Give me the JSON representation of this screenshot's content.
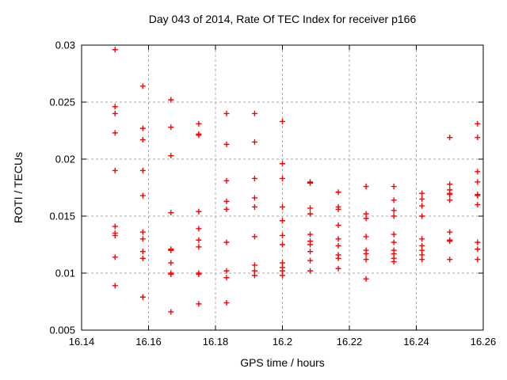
{
  "chart_data": {
    "type": "scatter",
    "title": "Day 043 of 2014, Rate Of TEC Index for receiver p166",
    "xlabel": "GPS time / hours",
    "ylabel": "ROTI / TECUs",
    "xlim": [
      16.14,
      16.26
    ],
    "ylim": [
      0.005,
      0.03
    ],
    "xticks": [
      {
        "value": 16.14,
        "label": "16.14"
      },
      {
        "value": 16.16,
        "label": "16.16"
      },
      {
        "value": 16.18,
        "label": "16.18"
      },
      {
        "value": 16.2,
        "label": "16.2"
      },
      {
        "value": 16.22,
        "label": "16.22"
      },
      {
        "value": 16.24,
        "label": "16.24"
      },
      {
        "value": 16.26,
        "label": "16.26"
      }
    ],
    "yticks": [
      {
        "value": 0.005,
        "label": "0.005"
      },
      {
        "value": 0.01,
        "label": "0.01"
      },
      {
        "value": 0.015,
        "label": "0.015"
      },
      {
        "value": 0.02,
        "label": "0.02"
      },
      {
        "value": 0.025,
        "label": "0.025"
      },
      {
        "value": 0.03,
        "label": "0.03"
      }
    ],
    "grid": true,
    "legend": "none",
    "marker": {
      "shape": "plus",
      "color": "#ff0000",
      "size": 7
    },
    "grid_color": "#a8a8a8",
    "frame_color": "#000000",
    "series": [
      {
        "name": "ROTI",
        "points": [
          [
            16.15,
            0.0296
          ],
          [
            16.15,
            0.0246
          ],
          [
            16.15,
            0.024
          ],
          [
            16.15,
            0.0223
          ],
          [
            16.15,
            0.019
          ],
          [
            16.15,
            0.0141
          ],
          [
            16.15,
            0.0135
          ],
          [
            16.15,
            0.0133
          ],
          [
            16.15,
            0.0114
          ],
          [
            16.15,
            0.0089
          ],
          [
            16.1583,
            0.0264
          ],
          [
            16.1583,
            0.0227
          ],
          [
            16.1583,
            0.0217
          ],
          [
            16.1583,
            0.019
          ],
          [
            16.1583,
            0.0168
          ],
          [
            16.1583,
            0.0136
          ],
          [
            16.1583,
            0.013
          ],
          [
            16.1583,
            0.0119
          ],
          [
            16.1583,
            0.0113
          ],
          [
            16.1583,
            0.0079
          ],
          [
            16.1667,
            0.0252
          ],
          [
            16.1667,
            0.0228
          ],
          [
            16.1667,
            0.0203
          ],
          [
            16.1667,
            0.0153
          ],
          [
            16.1667,
            0.0121
          ],
          [
            16.1667,
            0.012
          ],
          [
            16.1667,
            0.0109
          ],
          [
            16.1667,
            0.01
          ],
          [
            16.1667,
            0.0099
          ],
          [
            16.1667,
            0.0066
          ],
          [
            16.175,
            0.0231
          ],
          [
            16.175,
            0.0222
          ],
          [
            16.175,
            0.0221
          ],
          [
            16.175,
            0.0154
          ],
          [
            16.175,
            0.0139
          ],
          [
            16.175,
            0.0129
          ],
          [
            16.175,
            0.0123
          ],
          [
            16.175,
            0.01
          ],
          [
            16.175,
            0.0099
          ],
          [
            16.175,
            0.0073
          ],
          [
            16.1833,
            0.024
          ],
          [
            16.1833,
            0.0213
          ],
          [
            16.1833,
            0.0181
          ],
          [
            16.1833,
            0.0163
          ],
          [
            16.1833,
            0.0156
          ],
          [
            16.1833,
            0.0127
          ],
          [
            16.1833,
            0.0102
          ],
          [
            16.1833,
            0.0096
          ],
          [
            16.1833,
            0.0074
          ],
          [
            16.1917,
            0.024
          ],
          [
            16.1917,
            0.0215
          ],
          [
            16.1917,
            0.0183
          ],
          [
            16.1917,
            0.0166
          ],
          [
            16.1917,
            0.0158
          ],
          [
            16.1917,
            0.0132
          ],
          [
            16.1917,
            0.0107
          ],
          [
            16.1917,
            0.0102
          ],
          [
            16.1917,
            0.0098
          ],
          [
            16.2,
            0.0233
          ],
          [
            16.2,
            0.0196
          ],
          [
            16.2,
            0.0183
          ],
          [
            16.2,
            0.0158
          ],
          [
            16.2,
            0.0146
          ],
          [
            16.2,
            0.0133
          ],
          [
            16.2,
            0.0125
          ],
          [
            16.2,
            0.0109
          ],
          [
            16.2,
            0.0105
          ],
          [
            16.2,
            0.0102
          ],
          [
            16.2,
            0.0098
          ],
          [
            16.2083,
            0.018
          ],
          [
            16.2083,
            0.0179
          ],
          [
            16.2083,
            0.0157
          ],
          [
            16.2083,
            0.0152
          ],
          [
            16.2083,
            0.0134
          ],
          [
            16.2083,
            0.0128
          ],
          [
            16.2083,
            0.0125
          ],
          [
            16.2083,
            0.0119
          ],
          [
            16.2083,
            0.0111
          ],
          [
            16.2083,
            0.0102
          ],
          [
            16.2167,
            0.0171
          ],
          [
            16.2167,
            0.0158
          ],
          [
            16.2167,
            0.0156
          ],
          [
            16.2167,
            0.0142
          ],
          [
            16.2167,
            0.013
          ],
          [
            16.2167,
            0.0124
          ],
          [
            16.2167,
            0.0116
          ],
          [
            16.2167,
            0.0113
          ],
          [
            16.2167,
            0.0104
          ],
          [
            16.225,
            0.0176
          ],
          [
            16.225,
            0.0152
          ],
          [
            16.225,
            0.0148
          ],
          [
            16.225,
            0.0132
          ],
          [
            16.225,
            0.012
          ],
          [
            16.225,
            0.0117
          ],
          [
            16.225,
            0.0112
          ],
          [
            16.225,
            0.0095
          ],
          [
            16.2333,
            0.0176
          ],
          [
            16.2333,
            0.0164
          ],
          [
            16.2333,
            0.0155
          ],
          [
            16.2333,
            0.015
          ],
          [
            16.2333,
            0.0134
          ],
          [
            16.2333,
            0.0127
          ],
          [
            16.2333,
            0.012
          ],
          [
            16.2333,
            0.0117
          ],
          [
            16.2333,
            0.0113
          ],
          [
            16.2333,
            0.011
          ],
          [
            16.2417,
            0.017
          ],
          [
            16.2417,
            0.0165
          ],
          [
            16.2417,
            0.0159
          ],
          [
            16.2417,
            0.015
          ],
          [
            16.2417,
            0.013
          ],
          [
            16.2417,
            0.0124
          ],
          [
            16.2417,
            0.012
          ],
          [
            16.2417,
            0.0116
          ],
          [
            16.2417,
            0.0112
          ],
          [
            16.25,
            0.0219
          ],
          [
            16.25,
            0.0178
          ],
          [
            16.25,
            0.0173
          ],
          [
            16.25,
            0.017
          ],
          [
            16.25,
            0.0169
          ],
          [
            16.25,
            0.0164
          ],
          [
            16.25,
            0.0136
          ],
          [
            16.25,
            0.0129
          ],
          [
            16.25,
            0.0128
          ],
          [
            16.25,
            0.0112
          ],
          [
            16.2583,
            0.0231
          ],
          [
            16.2583,
            0.0219
          ],
          [
            16.2583,
            0.0189
          ],
          [
            16.2583,
            0.018
          ],
          [
            16.2583,
            0.0169
          ],
          [
            16.2583,
            0.0168
          ],
          [
            16.2583,
            0.016
          ],
          [
            16.2583,
            0.0127
          ],
          [
            16.2583,
            0.0121
          ],
          [
            16.2583,
            0.0112
          ]
        ]
      }
    ]
  }
}
